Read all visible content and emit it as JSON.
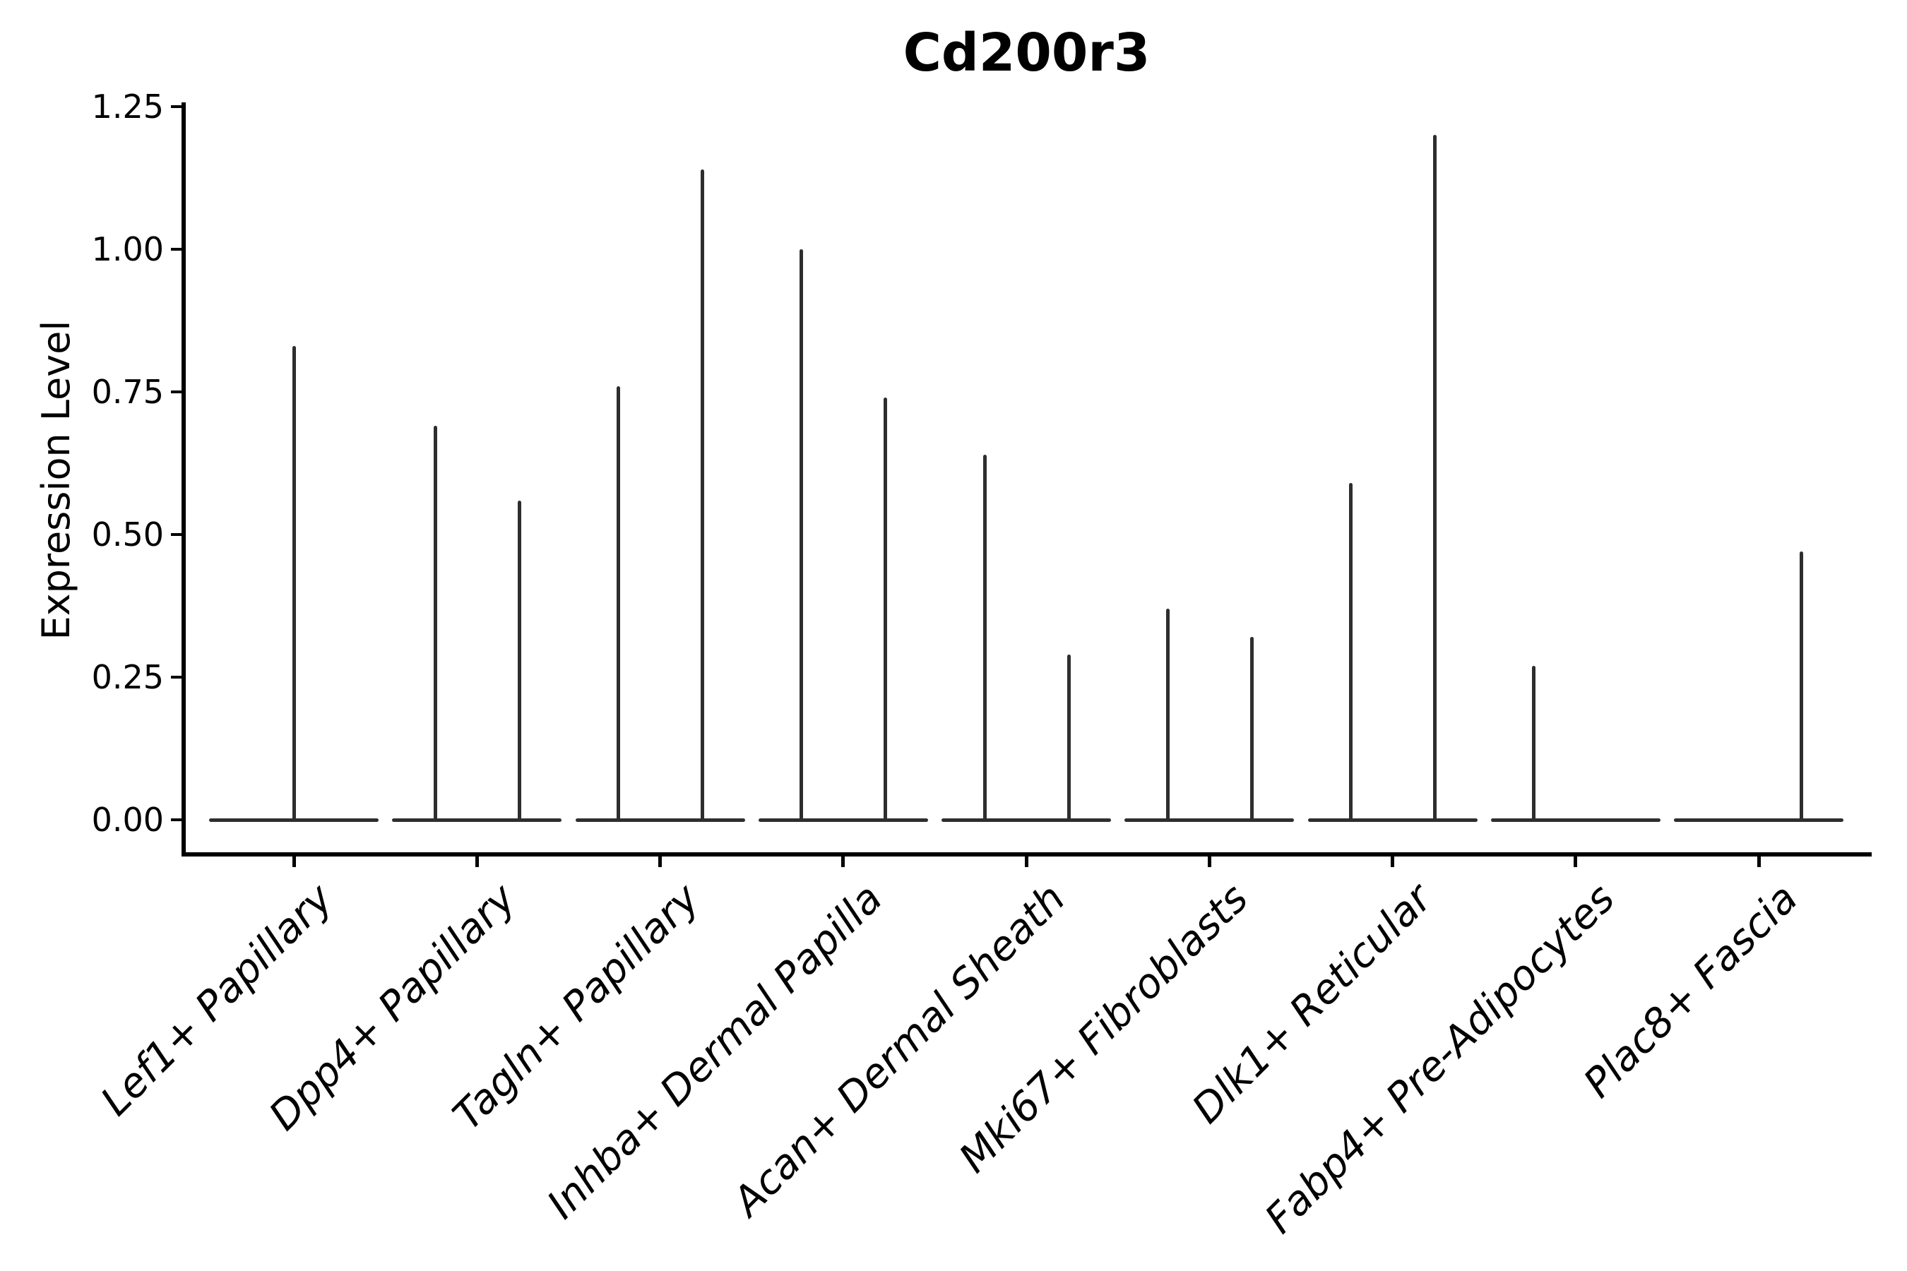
{
  "figure": {
    "background": "#ffffff"
  },
  "chart_data": {
    "type": "violin",
    "title": "Cd200r3",
    "ylabel": "Expression Level",
    "xlabel": "",
    "ylim": [
      0,
      1.25
    ],
    "yticks": [
      0.0,
      0.25,
      0.5,
      0.75,
      1.0,
      1.25
    ],
    "ytick_labels": [
      "0.00",
      "0.25",
      "0.50",
      "0.75",
      "1.00",
      "1.25"
    ],
    "grid": false,
    "legend": "none",
    "x_tick_label_rotation_deg": 45,
    "x_tick_label_style": "italic",
    "violin_shape_note": "Each violin is collapsed flat at expression 0 with thin vertical spikes reaching the maximum expression values; spikes sit at left/center/right positions within each category slot.",
    "categories": [
      "Lef1+ Papillary",
      "Dpp4+ Papillary",
      "Tagln+ Papillary",
      "Inhba+ Dermal Papilla",
      "Acan+ Dermal Sheath",
      "Mki67+ Fibroblasts",
      "Dlk1+ Reticular",
      "Fabp4+ Pre-Adipocytes",
      "Plac8+ Fascia"
    ],
    "violins": [
      {
        "category": "Lef1+ Papillary",
        "spikes": [
          {
            "position": "center",
            "max_expression": 0.83
          }
        ]
      },
      {
        "category": "Dpp4+ Papillary",
        "spikes": [
          {
            "position": "left",
            "max_expression": 0.69
          },
          {
            "position": "right",
            "max_expression": 0.56
          }
        ]
      },
      {
        "category": "Tagln+ Papillary",
        "spikes": [
          {
            "position": "left",
            "max_expression": 0.76
          },
          {
            "position": "right",
            "max_expression": 1.14
          }
        ]
      },
      {
        "category": "Inhba+ Dermal Papilla",
        "spikes": [
          {
            "position": "left",
            "max_expression": 1.0
          },
          {
            "position": "right",
            "max_expression": 0.74
          }
        ]
      },
      {
        "category": "Acan+ Dermal Sheath",
        "spikes": [
          {
            "position": "left",
            "max_expression": 0.64
          },
          {
            "position": "right",
            "max_expression": 0.29
          }
        ]
      },
      {
        "category": "Mki67+ Fibroblasts",
        "spikes": [
          {
            "position": "left",
            "max_expression": 0.37
          },
          {
            "position": "right",
            "max_expression": 0.32
          }
        ]
      },
      {
        "category": "Dlk1+ Reticular",
        "spikes": [
          {
            "position": "left",
            "max_expression": 0.59
          },
          {
            "position": "right",
            "max_expression": 1.2
          }
        ]
      },
      {
        "category": "Fabp4+ Pre-Adipocytes",
        "spikes": [
          {
            "position": "left",
            "max_expression": 0.27
          }
        ]
      },
      {
        "category": "Plac8+ Fascia",
        "spikes": [
          {
            "position": "right",
            "max_expression": 0.47
          }
        ]
      }
    ],
    "colors": {
      "violin_line": "#2e2e2e",
      "axis": "#000000",
      "text": "#000000",
      "background": "#ffffff"
    }
  }
}
